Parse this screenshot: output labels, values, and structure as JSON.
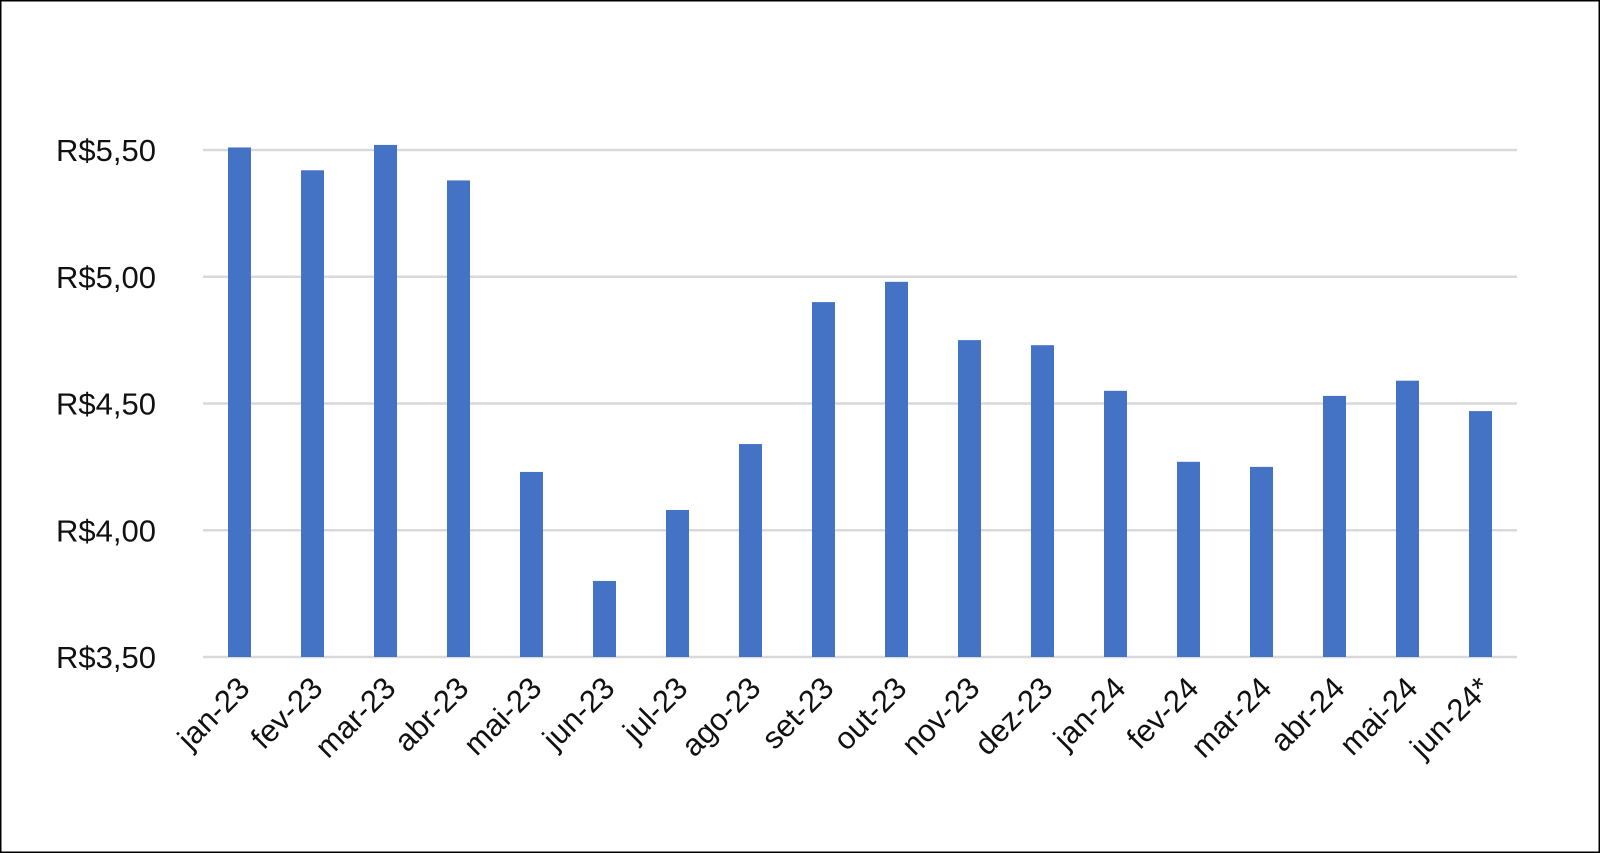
{
  "chart_data": {
    "type": "bar",
    "categories": [
      "jan-23",
      "fev-23",
      "mar-23",
      "abr-23",
      "mai-23",
      "jun-23",
      "jul-23",
      "ago-23",
      "set-23",
      "out-23",
      "nov-23",
      "dez-23",
      "jan-24",
      "fev-24",
      "mar-24",
      "abr-24",
      "mai-24",
      "jun-24*"
    ],
    "values": [
      5.51,
      5.42,
      5.52,
      5.38,
      4.23,
      3.8,
      4.08,
      4.34,
      4.9,
      4.98,
      4.75,
      4.73,
      4.55,
      4.27,
      4.25,
      4.53,
      4.59,
      4.47
    ],
    "color": "#4472c4",
    "ylim": [
      3.5,
      5.5
    ],
    "yticks": [
      {
        "value": 3.5,
        "label": "R$3,50"
      },
      {
        "value": 4,
        "label": "R$4,00"
      },
      {
        "value": 4.5,
        "label": "R$4,50"
      },
      {
        "value": 5,
        "label": "R$5,00"
      },
      {
        "value": 5.5,
        "label": "R$5,50"
      }
    ],
    "grid": true
  }
}
